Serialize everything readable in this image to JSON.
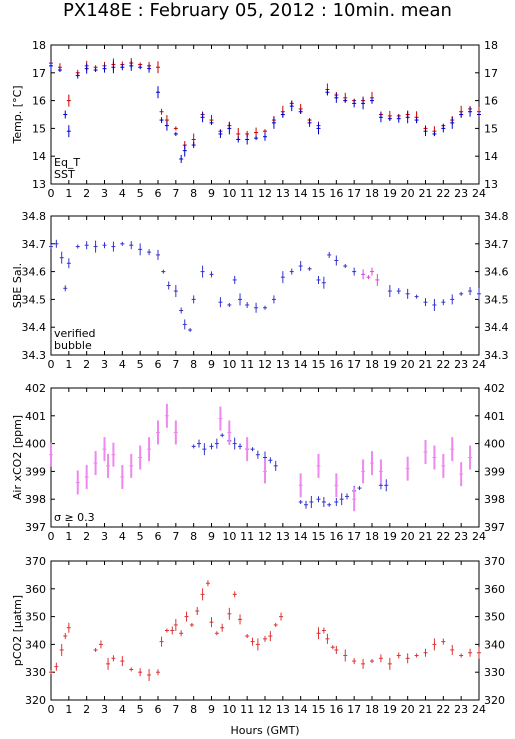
{
  "title": "PX148E : February 05, 2012 : 10min. mean",
  "xlabel": "Hours (GMT)",
  "colors": {
    "eq_t": "#cc0000",
    "sst": "#0000cc",
    "verified": "#3333cc",
    "bubble": "#dd44dd",
    "pco2": "#dd3333",
    "sigma": "#ee88ee"
  },
  "chart_data": [
    {
      "type": "scatter",
      "ylabel": "Temp. [°C]",
      "xlim": [
        0,
        24
      ],
      "ylim": [
        13,
        18
      ],
      "yticks": [
        13,
        14,
        15,
        16,
        17,
        18
      ],
      "legend": [
        "Eq_T",
        "SST"
      ],
      "series": [
        {
          "name": "Eq_T",
          "x": [
            0,
            0.5,
            1,
            1.5,
            2,
            2.5,
            3,
            3.5,
            4,
            4.5,
            5,
            5.5,
            6,
            6.2,
            6.5,
            7,
            7.5,
            8,
            8.5,
            9,
            9.5,
            10,
            10.5,
            11,
            11.5,
            12,
            12.5,
            13,
            13.5,
            14,
            14.5,
            15,
            15.5,
            16,
            16.5,
            17,
            17.5,
            18,
            18.5,
            19,
            19.5,
            20,
            20.5,
            21,
            21.5,
            22,
            22.5,
            23,
            23.5,
            24
          ],
          "y": [
            17.35,
            17.2,
            16.0,
            17.0,
            17.25,
            17.2,
            17.25,
            17.3,
            17.3,
            17.35,
            17.3,
            17.25,
            17.2,
            15.6,
            15.3,
            15.0,
            14.4,
            14.6,
            15.5,
            15.3,
            14.9,
            15.1,
            14.8,
            14.8,
            14.85,
            14.9,
            15.3,
            15.6,
            15.9,
            15.7,
            15.3,
            15.1,
            16.4,
            16.2,
            16.1,
            16.0,
            16.0,
            16.1,
            15.5,
            15.45,
            15.45,
            15.5,
            15.4,
            15.0,
            14.9,
            15.1,
            15.3,
            15.6,
            15.7,
            15.6
          ]
        },
        {
          "name": "SST",
          "x": [
            0,
            0.5,
            0.8,
            1,
            1.5,
            2,
            2.5,
            3,
            3.5,
            4,
            4.5,
            5,
            5.5,
            6,
            6.2,
            6.5,
            7,
            7.3,
            7.5,
            8,
            8.5,
            9,
            9.5,
            10,
            10.5,
            11,
            11.5,
            12,
            12.5,
            13,
            13.5,
            14,
            14.5,
            15,
            15.5,
            16,
            16.5,
            17,
            17.5,
            18,
            18.5,
            19,
            19.5,
            20,
            20.5,
            21,
            21.5,
            22,
            22.5,
            23,
            23.5,
            24
          ],
          "y": [
            17.25,
            17.1,
            15.5,
            14.9,
            16.9,
            17.15,
            17.1,
            17.15,
            17.2,
            17.2,
            17.25,
            17.2,
            17.15,
            16.3,
            15.3,
            15.1,
            14.8,
            13.9,
            14.2,
            14.4,
            15.4,
            15.2,
            14.8,
            15.0,
            14.6,
            14.6,
            14.65,
            14.7,
            15.2,
            15.5,
            15.8,
            15.6,
            15.2,
            15.0,
            16.3,
            16.1,
            16.0,
            15.9,
            15.9,
            16.0,
            15.4,
            15.35,
            15.35,
            15.4,
            15.3,
            14.9,
            14.8,
            15.0,
            15.2,
            15.5,
            15.6,
            15.5
          ]
        }
      ]
    },
    {
      "type": "scatter",
      "ylabel": "SBE Sal.",
      "xlim": [
        0,
        24
      ],
      "ylim": [
        34.3,
        34.8
      ],
      "yticks": [
        34.3,
        34.4,
        34.5,
        34.6,
        34.7,
        34.8
      ],
      "legend": [
        "verified",
        "bubble"
      ],
      "series": [
        {
          "name": "verified",
          "x": [
            0,
            0.3,
            0.6,
            0.8,
            1,
            1.5,
            2,
            2.5,
            3,
            3.5,
            4,
            4.5,
            5,
            5.5,
            6,
            6.3,
            6.6,
            7,
            7.3,
            7.5,
            7.8,
            8,
            8.5,
            9,
            9.5,
            10,
            10.3,
            10.6,
            11,
            11.5,
            12,
            12.5,
            13,
            13.5,
            14,
            14.5,
            15,
            15.3,
            15.6,
            16,
            16.5,
            17,
            19,
            19.5,
            20,
            20.5,
            21,
            21.5,
            22,
            22.5,
            23,
            23.5,
            24
          ],
          "y": [
            34.69,
            34.7,
            34.65,
            34.54,
            34.63,
            34.69,
            34.695,
            34.69,
            34.695,
            34.69,
            34.7,
            34.695,
            34.68,
            34.67,
            34.66,
            34.6,
            34.55,
            34.53,
            34.46,
            34.41,
            34.39,
            34.5,
            34.6,
            34.59,
            34.49,
            34.48,
            34.57,
            34.5,
            34.48,
            34.47,
            34.47,
            34.5,
            34.58,
            34.6,
            34.62,
            34.61,
            34.57,
            34.56,
            34.66,
            34.64,
            34.62,
            34.6,
            34.53,
            34.53,
            34.52,
            34.51,
            34.49,
            34.48,
            34.49,
            34.5,
            34.52,
            34.53,
            34.52
          ]
        },
        {
          "name": "bubble",
          "x": [
            17.5,
            17.8,
            18,
            18.3
          ],
          "y": [
            34.59,
            34.58,
            34.6,
            34.57
          ]
        }
      ]
    },
    {
      "type": "scatter",
      "ylabel": "Air xCO2 [ppm]",
      "xlim": [
        0,
        24
      ],
      "ylim": [
        397,
        402
      ],
      "yticks": [
        397,
        398,
        399,
        400,
        401,
        402
      ],
      "legend": [
        "σ ≥ 0.3"
      ],
      "series": [
        {
          "name": "verified",
          "x": [
            8,
            8.3,
            8.6,
            9,
            9.3,
            9.6,
            10,
            10.3,
            10.6,
            11,
            11.3,
            11.6,
            12,
            12.3,
            12.6,
            14,
            14.3,
            14.6,
            15,
            15.3,
            15.6,
            16,
            16.3,
            16.6,
            17,
            17.3,
            18.5,
            18.8
          ],
          "y": [
            399.9,
            400.0,
            399.8,
            399.9,
            400.0,
            400.3,
            400.1,
            400.0,
            399.9,
            399.8,
            399.8,
            399.6,
            399.5,
            399.4,
            399.2,
            397.9,
            397.8,
            397.9,
            398.0,
            397.9,
            397.8,
            397.9,
            398.0,
            398.1,
            398.3,
            398.4,
            398.5,
            398.5
          ]
        },
        {
          "name": "σ ≥ 0.3",
          "x": [
            0,
            1.5,
            2,
            2.5,
            3,
            3.2,
            3.5,
            4,
            4.5,
            5,
            5.5,
            6,
            6.5,
            7,
            9.5,
            10,
            11,
            12,
            14,
            15,
            16,
            17,
            17.5,
            18,
            18.5,
            20,
            21,
            21.5,
            22,
            22.5,
            23,
            23.5
          ],
          "y": [
            399.6,
            398.6,
            398.8,
            399.3,
            399.8,
            399.2,
            399.6,
            398.8,
            399.2,
            399.5,
            399.8,
            400.4,
            401.0,
            400.4,
            400.9,
            400.4,
            399.8,
            399.0,
            398.5,
            399.2,
            398.5,
            398.0,
            399.0,
            399.3,
            399.0,
            399.1,
            399.7,
            399.5,
            399.2,
            399.8,
            398.9,
            399.5
          ]
        }
      ]
    },
    {
      "type": "scatter",
      "ylabel": "pCO2 [μatm]",
      "xlim": [
        0,
        24
      ],
      "ylim": [
        320,
        370
      ],
      "yticks": [
        320,
        330,
        340,
        350,
        360,
        370
      ],
      "series": [
        {
          "name": "pCO2",
          "x": [
            0,
            0.3,
            0.6,
            0.8,
            1,
            2.5,
            2.8,
            3.2,
            3.5,
            4,
            4.5,
            5,
            5.5,
            6,
            6.2,
            6.5,
            6.8,
            7,
            7.3,
            7.6,
            7.9,
            8.2,
            8.5,
            8.8,
            9,
            9.3,
            9.6,
            10,
            10.3,
            10.6,
            11,
            11.3,
            11.6,
            12,
            12.3,
            12.6,
            12.9,
            15,
            15.3,
            15.5,
            15.8,
            16,
            16.5,
            17,
            17.5,
            18,
            18.5,
            19,
            19.5,
            20,
            20.5,
            21,
            21.5,
            22,
            22.5,
            23,
            23.5,
            24
          ],
          "y": [
            330,
            332,
            338,
            343,
            346,
            338,
            340,
            333,
            335,
            334,
            331,
            330,
            329,
            330,
            341,
            345,
            345,
            347,
            344,
            350,
            347,
            352,
            358,
            362,
            348,
            344,
            346,
            351,
            358,
            349,
            343,
            341,
            340,
            342,
            343,
            347,
            350,
            344,
            345,
            342,
            339,
            338,
            336,
            334,
            333,
            334,
            335,
            333,
            336,
            335,
            336,
            337,
            340,
            341,
            338,
            336,
            337,
            337
          ]
        }
      ]
    }
  ]
}
